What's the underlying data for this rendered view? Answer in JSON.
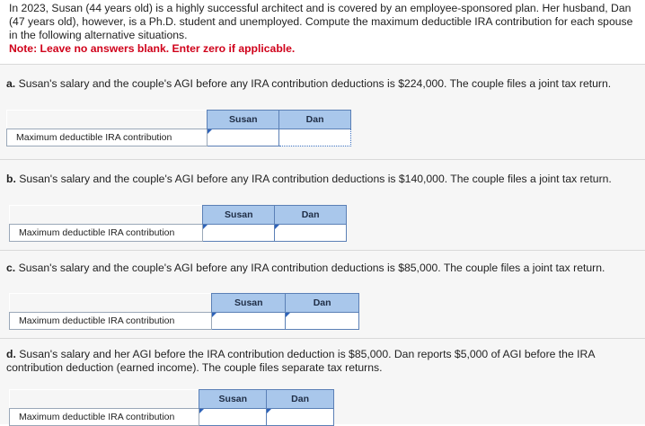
{
  "intro": {
    "text": "In 2023, Susan (44 years old) is a highly successful architect and is covered by an employee-sponsored plan. Her husband, Dan (47 years old), however, is a Ph.D. student and unemployed. Compute the maximum deductible IRA contribution for each spouse in the following alternative situations.",
    "note": "Note: Leave no answers blank. Enter zero if applicable."
  },
  "parts": [
    {
      "letter": "a.",
      "text": "Susan's salary and the couple's AGI before any IRA contribution deductions is $224,000. The couple files a joint tax return.",
      "row_label": "Maximum deductible IRA contribution",
      "col_susan": "Susan",
      "col_dan": "Dan",
      "susan_value": "",
      "dan_value": ""
    },
    {
      "letter": "b.",
      "text": "Susan's salary and the couple's AGI before any IRA contribution deductions is $140,000. The couple files a joint tax return.",
      "row_label": "Maximum deductible IRA contribution",
      "col_susan": "Susan",
      "col_dan": "Dan",
      "susan_value": "",
      "dan_value": ""
    },
    {
      "letter": "c.",
      "text": "Susan's salary and the couple's AGI before any IRA contribution deductions is $85,000. The couple files a joint tax return.",
      "row_label": "Maximum deductible IRA contribution",
      "col_susan": "Susan",
      "col_dan": "Dan",
      "susan_value": "",
      "dan_value": ""
    },
    {
      "letter": "d.",
      "text": "Susan's salary and her AGI before the IRA contribution deduction is $85,000. Dan reports $5,000 of AGI before the IRA contribution deduction (earned income). The couple files separate tax returns.",
      "row_label": "Maximum deductible IRA contribution",
      "col_susan": "Susan",
      "col_dan": "Dan",
      "susan_value": "",
      "dan_value": ""
    }
  ]
}
